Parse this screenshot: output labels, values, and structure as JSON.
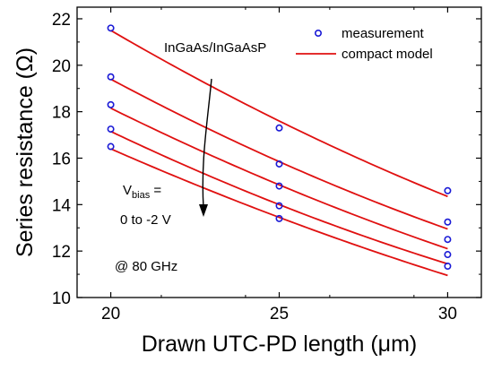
{
  "chart_data": {
    "type": "scatter",
    "xlabel": "Drawn UTC-PD length (μm)",
    "ylabel": "Series resistance (Ω)",
    "xlim": [
      19,
      31
    ],
    "ylim": [
      10,
      22.5
    ],
    "x_ticks": [
      20,
      25,
      30
    ],
    "y_ticks": [
      10,
      12,
      14,
      16,
      18,
      20,
      22
    ],
    "legend": {
      "placement": "top-right",
      "entries": [
        {
          "label": "measurement",
          "marker": "circle",
          "color": "#1a1ad6"
        },
        {
          "label": "compact model",
          "marker": "line",
          "color": "#e01010"
        }
      ]
    },
    "series": [
      {
        "x": [
          20,
          25,
          30
        ],
        "measurement": [
          21.6,
          17.3,
          14.6
        ],
        "model": [
          21.5,
          17.6,
          14.35
        ]
      },
      {
        "x": [
          20,
          25,
          30
        ],
        "measurement": [
          19.5,
          15.75,
          13.25
        ],
        "model": [
          19.4,
          15.85,
          12.95
        ]
      },
      {
        "x": [
          20,
          25,
          30
        ],
        "measurement": [
          18.3,
          14.8,
          12.5
        ],
        "model": [
          18.15,
          14.85,
          12.1
        ]
      },
      {
        "x": [
          20,
          25,
          30
        ],
        "measurement": [
          17.25,
          13.95,
          11.85
        ],
        "model": [
          17.15,
          14.0,
          11.45
        ]
      },
      {
        "x": [
          20,
          25,
          30
        ],
        "measurement": [
          16.5,
          13.4,
          11.35
        ],
        "model": [
          16.4,
          13.45,
          10.95
        ]
      }
    ],
    "annotations": {
      "material": "InGaAs/InGaAsP",
      "vbias_main": "V",
      "vbias_sub": "bias",
      "vbias_eq": " =",
      "vbias_range": "0 to -2 V",
      "frequency": "@ 80 GHz"
    },
    "colors": {
      "measurement": "#1a1ad6",
      "model": "#e01010",
      "axis": "#000000"
    }
  }
}
